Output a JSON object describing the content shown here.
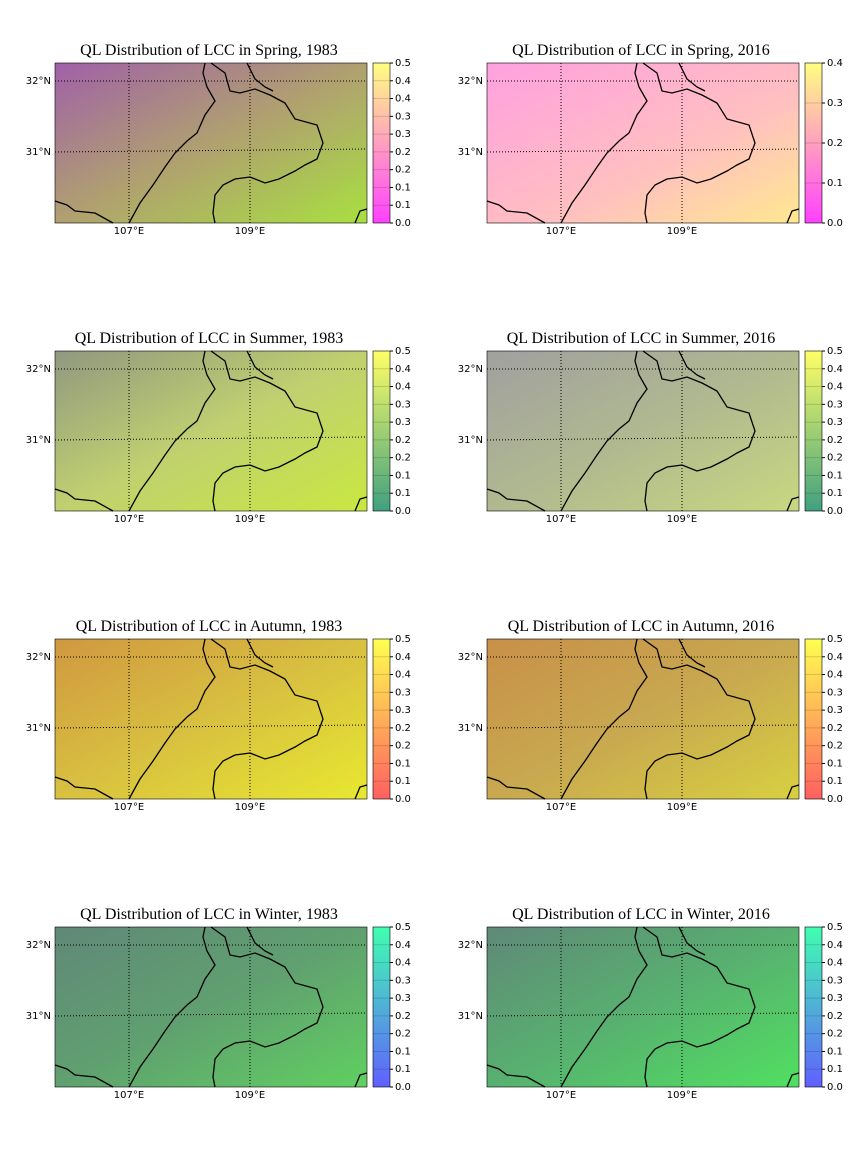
{
  "panels": [
    {
      "title": "QL Distribution of LCC in Spring, 1983",
      "lat_labels": [
        "32°N",
        "31°N"
      ],
      "lon_labels": [
        "107°E",
        "109°E"
      ],
      "colorbar_ticks": [
        "0.5",
        "0.4",
        "0.4",
        "0.3",
        "0.3",
        "0.2",
        "0.2",
        "0.1",
        "0.1",
        "0.0"
      ]
    },
    {
      "title": "QL Distribution of LCC in Spring, 2016",
      "lat_labels": [
        "32°N",
        "31°N"
      ],
      "lon_labels": [
        "107°E",
        "109°E"
      ],
      "colorbar_ticks": [
        "0.4",
        "0.3",
        "0.2",
        "0.1",
        "0.0"
      ]
    },
    {
      "title": "QL Distribution of LCC in Summer, 1983",
      "lat_labels": [
        "32°N",
        "31°N"
      ],
      "lon_labels": [
        "107°E",
        "109°E"
      ],
      "colorbar_ticks": [
        "0.5",
        "0.4",
        "0.4",
        "0.3",
        "0.3",
        "0.2",
        "0.2",
        "0.1",
        "0.1",
        "0.0"
      ]
    },
    {
      "title": "QL Distribution of LCC in Summer, 2016",
      "lat_labels": [
        "32°N",
        "31°N"
      ],
      "lon_labels": [
        "107°E",
        "109°E"
      ],
      "colorbar_ticks": [
        "0.5",
        "0.4",
        "0.4",
        "0.3",
        "0.3",
        "0.2",
        "0.2",
        "0.1",
        "0.1",
        "0.0"
      ]
    },
    {
      "title": "QL Distribution of LCC in Autumn, 1983",
      "lat_labels": [
        "32°N",
        "31°N"
      ],
      "lon_labels": [
        "107°E",
        "109°E"
      ],
      "colorbar_ticks": [
        "0.5",
        "0.4",
        "0.4",
        "0.3",
        "0.3",
        "0.2",
        "0.2",
        "0.1",
        "0.1",
        "0.0"
      ]
    },
    {
      "title": "QL Distribution of LCC in Autumn, 2016",
      "lat_labels": [
        "32°N",
        "31°N"
      ],
      "lon_labels": [
        "107°E",
        "109°E"
      ],
      "colorbar_ticks": [
        "0.5",
        "0.4",
        "0.4",
        "0.3",
        "0.3",
        "0.2",
        "0.2",
        "0.1",
        "0.1",
        "0.0"
      ]
    },
    {
      "title": "QL Distribution of LCC in Winter, 1983",
      "lat_labels": [
        "32°N",
        "31°N"
      ],
      "lon_labels": [
        "107°E",
        "109°E"
      ],
      "colorbar_ticks": [
        "0.5",
        "0.4",
        "0.4",
        "0.3",
        "0.3",
        "0.2",
        "0.2",
        "0.1",
        "0.1",
        "0.0"
      ]
    },
    {
      "title": "QL Distribution of LCC in Winter, 2016",
      "lat_labels": [
        "32°N",
        "31°N"
      ],
      "lon_labels": [
        "107°E",
        "109°E"
      ],
      "colorbar_ticks": [
        "0.5",
        "0.4",
        "0.4",
        "0.3",
        "0.3",
        "0.2",
        "0.2",
        "0.1",
        "0.1",
        "0.0"
      ]
    }
  ]
}
